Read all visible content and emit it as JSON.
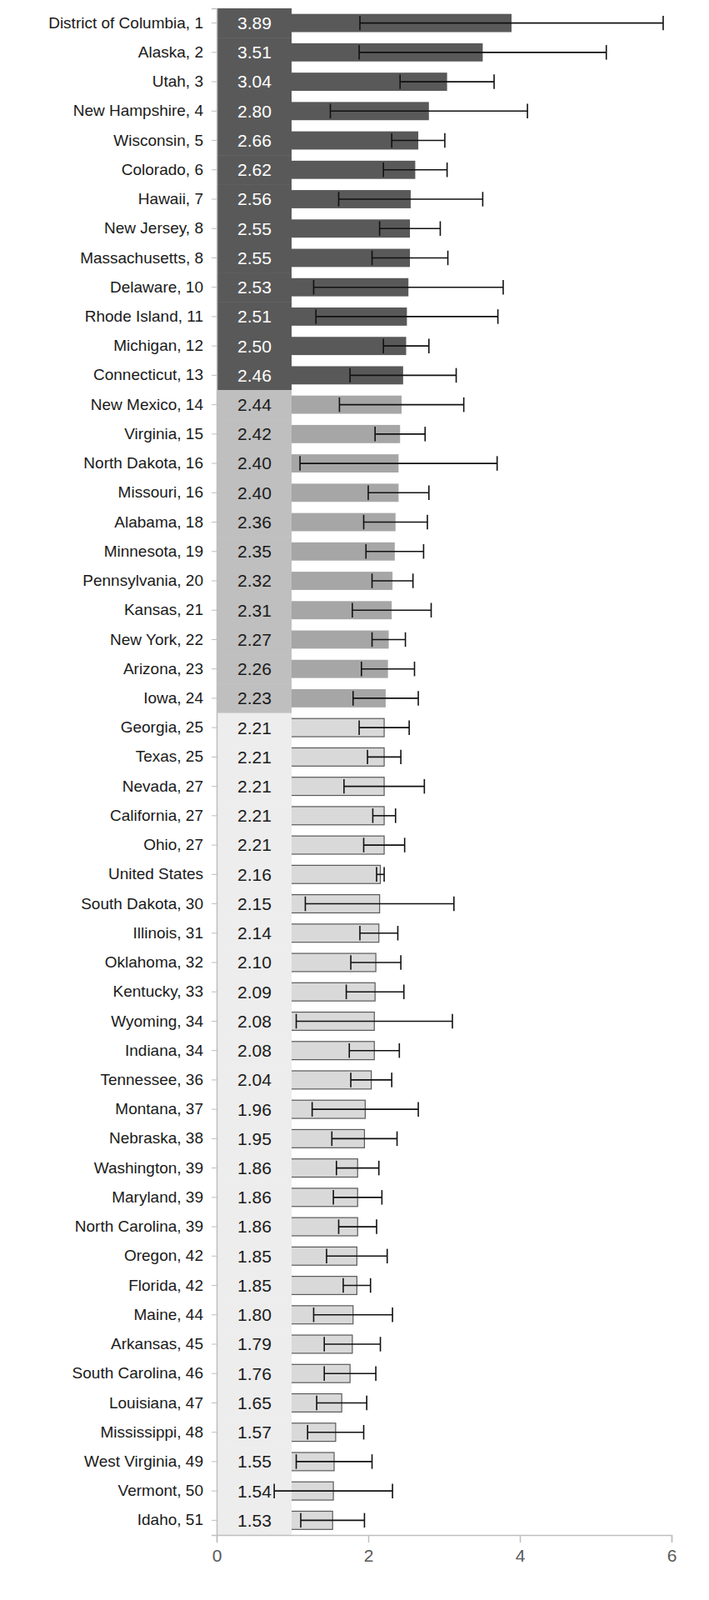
{
  "chart_data": {
    "type": "bar",
    "orientation": "horizontal",
    "data_labels": true,
    "grid": false,
    "categories": [
      "District of Columbia, 1",
      "Alaska, 2",
      "Utah, 3",
      "New Hampshire, 4",
      "Wisconsin, 5",
      "Colorado, 6",
      "Hawaii, 7",
      "New Jersey, 8",
      "Massachusetts, 8",
      "Delaware, 10",
      "Rhode Island, 11",
      "Michigan, 12",
      "Connecticut, 13",
      "New Mexico, 14",
      "Virginia, 15",
      "North Dakota, 16",
      "Missouri, 16",
      "Alabama, 18",
      "Minnesota, 19",
      "Pennsylvania, 20",
      "Kansas, 21",
      "New York, 22",
      "Arizona, 23",
      "Iowa, 24",
      "Georgia, 25",
      "Texas, 25",
      "Nevada, 27",
      "California, 27",
      "Ohio, 27",
      "United States",
      "South Dakota, 30",
      "Illinois, 31",
      "Oklahoma, 32",
      "Kentucky, 33",
      "Wyoming, 34",
      "Indiana, 34",
      "Tennessee, 36",
      "Montana, 37",
      "Nebraska, 38",
      "Washington, 39",
      "Maryland, 39",
      "North Carolina, 39",
      "Oregon, 42",
      "Florida, 42",
      "Maine, 44",
      "Arkansas, 45",
      "South Carolina, 46",
      "Louisiana, 47",
      "Mississippi, 48",
      "West Virginia, 49",
      "Vermont, 50",
      "Idaho, 51"
    ],
    "values": [
      3.89,
      3.51,
      3.04,
      2.8,
      2.66,
      2.62,
      2.56,
      2.55,
      2.55,
      2.53,
      2.51,
      2.5,
      2.46,
      2.44,
      2.42,
      2.4,
      2.4,
      2.36,
      2.35,
      2.32,
      2.31,
      2.27,
      2.26,
      2.23,
      2.21,
      2.21,
      2.21,
      2.21,
      2.21,
      2.16,
      2.15,
      2.14,
      2.1,
      2.09,
      2.08,
      2.08,
      2.04,
      1.96,
      1.95,
      1.86,
      1.86,
      1.86,
      1.85,
      1.85,
      1.8,
      1.79,
      1.76,
      1.65,
      1.57,
      1.55,
      1.54,
      1.53
    ],
    "value_labels": [
      "3.89",
      "3.51",
      "3.04",
      "2.80",
      "2.66",
      "2.62",
      "2.56",
      "2.55",
      "2.55",
      "2.53",
      "2.51",
      "2.50",
      "2.46",
      "2.44",
      "2.42",
      "2.40",
      "2.40",
      "2.36",
      "2.35",
      "2.32",
      "2.31",
      "2.27",
      "2.26",
      "2.23",
      "2.21",
      "2.21",
      "2.21",
      "2.21",
      "2.21",
      "2.16",
      "2.15",
      "2.14",
      "2.10",
      "2.09",
      "2.08",
      "2.08",
      "2.04",
      "1.96",
      "1.95",
      "1.86",
      "1.86",
      "1.86",
      "1.85",
      "1.85",
      "1.80",
      "1.79",
      "1.76",
      "1.65",
      "1.57",
      "1.55",
      "1.54",
      "1.53"
    ],
    "errors": [
      2.0,
      1.63,
      0.62,
      1.3,
      0.35,
      0.42,
      0.95,
      0.4,
      0.5,
      1.25,
      1.2,
      0.3,
      0.7,
      0.82,
      0.33,
      1.3,
      0.4,
      0.42,
      0.38,
      0.27,
      0.52,
      0.22,
      0.35,
      0.43,
      0.33,
      0.22,
      0.53,
      0.15,
      0.27,
      0.05,
      0.98,
      0.25,
      0.33,
      0.38,
      1.03,
      0.33,
      0.27,
      0.7,
      0.43,
      0.28,
      0.32,
      0.25,
      0.4,
      0.18,
      0.52,
      0.37,
      0.34,
      0.33,
      0.37,
      0.5,
      0.78,
      0.42
    ],
    "colors": [
      "#595959",
      "#595959",
      "#595959",
      "#595959",
      "#595959",
      "#595959",
      "#595959",
      "#595959",
      "#595959",
      "#595959",
      "#595959",
      "#595959",
      "#595959",
      "#a6a6a6",
      "#a6a6a6",
      "#a6a6a6",
      "#a6a6a6",
      "#a6a6a6",
      "#a6a6a6",
      "#a6a6a6",
      "#a6a6a6",
      "#a6a6a6",
      "#a6a6a6",
      "#a6a6a6",
      "#d9d9d9",
      "#d9d9d9",
      "#d9d9d9",
      "#d9d9d9",
      "#d9d9d9",
      "#d9d9d9",
      "#d9d9d9",
      "#d9d9d9",
      "#d9d9d9",
      "#d9d9d9",
      "#d9d9d9",
      "#d9d9d9",
      "#d9d9d9",
      "#d9d9d9",
      "#d9d9d9",
      "#d9d9d9",
      "#d9d9d9",
      "#d9d9d9",
      "#d9d9d9",
      "#d9d9d9",
      "#d9d9d9",
      "#d9d9d9",
      "#d9d9d9",
      "#d9d9d9",
      "#d9d9d9",
      "#d9d9d9",
      "#d9d9d9",
      "#d9d9d9"
    ],
    "xlim": [
      0,
      6
    ],
    "xticks": [
      0,
      2,
      4,
      6
    ]
  }
}
